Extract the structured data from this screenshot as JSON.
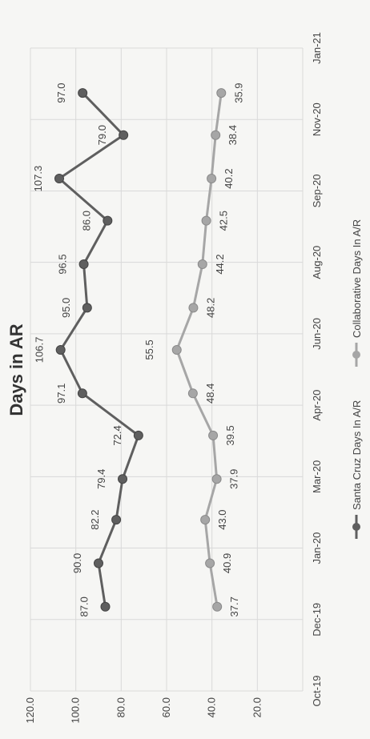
{
  "chart_data": {
    "type": "line",
    "title": "Days in AR",
    "x_tick_labels": [
      "Oct-19",
      "Dec-19",
      "Jan-20",
      "Mar-20",
      "Apr-20",
      "Jun-20",
      "Aug-20",
      "Sep-20",
      "Nov-20",
      "Jan-21"
    ],
    "y_tick_labels": [
      "20.0",
      "40.0",
      "60.0",
      "80.0",
      "100.0",
      "120.0"
    ],
    "ylim": [
      0,
      120
    ],
    "grid": true,
    "legend_position": "bottom",
    "series": [
      {
        "name": "Santa Cruz Days In A/R",
        "color": "#5f5f5f",
        "points": [
          {
            "x": "2019-11-30",
            "y": 87.0,
            "label": "87.0"
          },
          {
            "x": "2019-12-31",
            "y": 90.0,
            "label": "90.0"
          },
          {
            "x": "2020-01-31",
            "y": 82.2,
            "label": "82.2"
          },
          {
            "x": "2020-02-29",
            "y": 79.4,
            "label": "79.4"
          },
          {
            "x": "2020-03-31",
            "y": 72.4,
            "label": "72.4"
          },
          {
            "x": "2020-04-30",
            "y": 97.1,
            "label": "97.1"
          },
          {
            "x": "2020-05-31",
            "y": 106.7,
            "label": "106.7"
          },
          {
            "x": "2020-06-30",
            "y": 95.0,
            "label": "95.0"
          },
          {
            "x": "2020-07-31",
            "y": 96.5,
            "label": "96.5"
          },
          {
            "x": "2020-08-31",
            "y": 86.0,
            "label": "86.0"
          },
          {
            "x": "2020-09-30",
            "y": 107.3,
            "label": "107.3"
          },
          {
            "x": "2020-10-31",
            "y": 79.0,
            "label": "79.0"
          },
          {
            "x": "2020-11-30",
            "y": 97.0,
            "label": "97.0"
          }
        ]
      },
      {
        "name": "Collaborative Days In A/R",
        "color": "#a6a6a6",
        "points": [
          {
            "x": "2019-11-30",
            "y": 37.7,
            "label": "37.7"
          },
          {
            "x": "2019-12-31",
            "y": 40.9,
            "label": "40.9"
          },
          {
            "x": "2020-01-31",
            "y": 43.0,
            "label": "43.0"
          },
          {
            "x": "2020-02-29",
            "y": 37.9,
            "label": "37.9"
          },
          {
            "x": "2020-03-31",
            "y": 39.5,
            "label": "39.5"
          },
          {
            "x": "2020-04-30",
            "y": 48.4,
            "label": "48.4"
          },
          {
            "x": "2020-05-31",
            "y": 55.5,
            "label": "55.5"
          },
          {
            "x": "2020-06-30",
            "y": 48.2,
            "label": "48.2"
          },
          {
            "x": "2020-07-31",
            "y": 44.2,
            "label": "44.2"
          },
          {
            "x": "2020-08-31",
            "y": 42.5,
            "label": "42.5"
          },
          {
            "x": "2020-09-30",
            "y": 40.2,
            "label": "40.2"
          },
          {
            "x": "2020-10-31",
            "y": 38.4,
            "label": "38.4"
          },
          {
            "x": "2020-11-30",
            "y": 35.9,
            "label": "35.9"
          }
        ]
      }
    ]
  }
}
